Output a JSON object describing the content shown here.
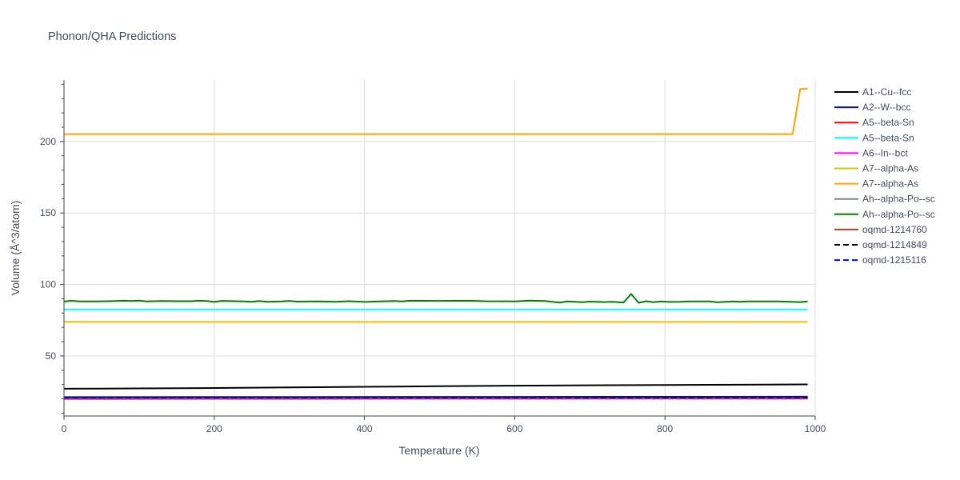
{
  "chart_data": {
    "type": "line",
    "title": "Phonon/QHA Predictions",
    "xlabel": "Temperature (K)",
    "ylabel": "Volume (Å^3/atom)",
    "xlim": [
      0,
      1000
    ],
    "ylim": [
      8,
      243
    ],
    "xticks": [
      0,
      200,
      400,
      600,
      800,
      1000
    ],
    "yticks": [
      50,
      100,
      150,
      200
    ],
    "grid": true,
    "legend_position": "right",
    "series": [
      {
        "name": "A1--Cu--fcc",
        "color": "#000000",
        "dash": "solid",
        "x": [
          0,
          100,
          200,
          300,
          400,
          500,
          600,
          700,
          800,
          900,
          990
        ],
        "y": [
          27.1,
          27.3,
          27.6,
          28.0,
          28.4,
          28.8,
          29.2,
          29.5,
          29.7,
          29.9,
          30.1
        ]
      },
      {
        "name": "A2--W--bcc",
        "color": "#0000ff",
        "dash": "solid",
        "x": [
          0,
          990
        ],
        "y": [
          21.2,
          21.5
        ]
      },
      {
        "name": "A5--beta-Sn",
        "color": "#ff0000",
        "dash": "solid",
        "x": [
          0,
          990
        ],
        "y": [
          20.0,
          20.2
        ]
      },
      {
        "name": "A5--beta-Sn",
        "color": "#00ffff",
        "dash": "solid",
        "x": [
          0,
          990
        ],
        "y": [
          82.6,
          82.6
        ]
      },
      {
        "name": "A6--In--bct",
        "color": "#ff00ff",
        "dash": "solid",
        "x": [
          0,
          990
        ],
        "y": [
          20.4,
          20.6
        ]
      },
      {
        "name": "A7--alpha-As",
        "color": "#e8c200",
        "dash": "solid",
        "x": [
          0,
          990
        ],
        "y": [
          73.8,
          73.8
        ]
      },
      {
        "name": "A7--alpha-As",
        "color": "#ffa500",
        "dash": "solid",
        "x": [
          0,
          970,
          980,
          990
        ],
        "y": [
          205.2,
          205.2,
          236.8,
          236.8
        ]
      },
      {
        "name": "Ah--alpha-Po--sc",
        "color": "#808080",
        "dash": "solid",
        "x": [
          0,
          990
        ],
        "y": [
          20.8,
          20.9
        ]
      },
      {
        "name": "Ah--alpha-Po--sc",
        "color": "#008000",
        "dash": "solid",
        "x": [
          0,
          10,
          20,
          40,
          60,
          80,
          90,
          100,
          110,
          130,
          150,
          170,
          180,
          190,
          200,
          210,
          240,
          250,
          260,
          270,
          290,
          300,
          310,
          340,
          360,
          380,
          400,
          420,
          440,
          450,
          460,
          500,
          540,
          560,
          600,
          620,
          640,
          660,
          670,
          690,
          700,
          720,
          730,
          745,
          755,
          765,
          775,
          785,
          795,
          805,
          820,
          830,
          860,
          870,
          890,
          900,
          910,
          950,
          980,
          990
        ],
        "y": [
          88.0,
          88.6,
          88.2,
          88.2,
          88.3,
          88.6,
          88.4,
          88.7,
          88.2,
          88.4,
          88.3,
          88.3,
          88.6,
          88.4,
          87.8,
          88.5,
          88.1,
          87.9,
          88.4,
          87.9,
          88.1,
          88.5,
          88.0,
          88.2,
          87.9,
          88.3,
          87.8,
          88.1,
          88.4,
          88.2,
          88.6,
          88.5,
          88.6,
          88.3,
          88.2,
          88.7,
          88.4,
          87.3,
          88.1,
          87.6,
          88.0,
          87.7,
          87.9,
          87.4,
          93.4,
          87.2,
          88.3,
          87.6,
          88.1,
          87.8,
          87.9,
          88.2,
          88.2,
          87.5,
          88.2,
          87.9,
          88.2,
          88.2,
          87.7,
          88.1
        ]
      },
      {
        "name": "oqmd-1214760",
        "color": "#c0392b",
        "dash": "solid",
        "x": [
          0,
          990
        ],
        "y": [
          20.3,
          20.4
        ]
      },
      {
        "name": "oqmd-1214849",
        "color": "#000000",
        "dash": "dash",
        "x": [
          0,
          990
        ],
        "y": [
          20.9,
          21.0
        ]
      },
      {
        "name": "oqmd-1215116",
        "color": "#0000ff",
        "dash": "dash",
        "x": [
          0,
          990
        ],
        "y": [
          21.0,
          21.2
        ]
      }
    ]
  }
}
